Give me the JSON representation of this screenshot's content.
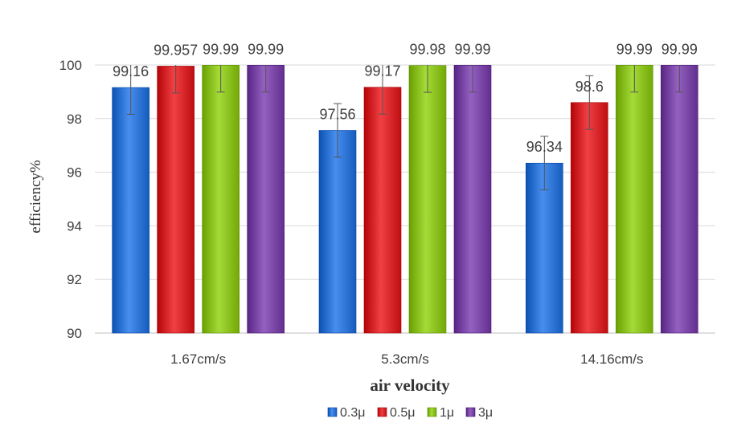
{
  "chart_data": {
    "type": "bar",
    "categories": [
      "1.67cm/s",
      "5.3cm/s",
      "14.16cm/s"
    ],
    "series": [
      {
        "name": "0.3μ",
        "values": [
          99.16,
          97.56,
          96.34
        ],
        "labels": [
          "99.16",
          "97.56",
          "96.34"
        ],
        "error": 1,
        "color": "#2F75D6"
      },
      {
        "name": "0.5μ",
        "values": [
          99.957,
          99.17,
          98.6
        ],
        "labels": [
          "99.957",
          "99.17",
          "98.6"
        ],
        "error": 1,
        "color": "#D8272B"
      },
      {
        "name": "1μ",
        "values": [
          99.99,
          99.98,
          99.99
        ],
        "labels": [
          "99.99",
          "99.98",
          "99.99"
        ],
        "error": 1,
        "color": "#8CC21F"
      },
      {
        "name": "3μ",
        "values": [
          99.99,
          99.99,
          99.99
        ],
        "labels": [
          "99.99",
          "99.99",
          "99.99"
        ],
        "error": 1,
        "color": "#7B48A8"
      }
    ],
    "title": "",
    "xlabel": "air velocity",
    "ylabel": "efficiency%",
    "ylim": [
      90,
      100
    ],
    "yticks": [
      "90",
      "92",
      "94",
      "96",
      "98",
      "100"
    ],
    "grid": true,
    "legend_position": "bottom"
  }
}
